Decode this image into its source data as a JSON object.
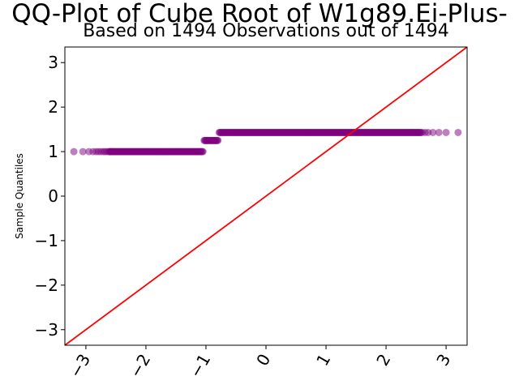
{
  "chart_data": {
    "type": "scatter",
    "title": "QQ-Plot of Cube Root of W1g89.Ei-Plus-",
    "subtitle": "Based on 1494 Observations out of 1494",
    "xlabel": "",
    "ylabel": "Sample Quantiles",
    "xlim": [
      -3.35,
      3.35
    ],
    "ylim": [
      -3.35,
      3.35
    ],
    "x_ticks": [
      -3,
      -2,
      -1,
      0,
      1,
      2,
      3
    ],
    "y_ticks": [
      -3,
      -2,
      -1,
      0,
      1,
      2,
      3
    ],
    "x_tick_labels": [
      "−3",
      "−2",
      "−1",
      "0",
      "1",
      "2",
      "3"
    ],
    "y_tick_labels": [
      "−3",
      "−2",
      "−1",
      "0",
      "1",
      "2",
      "3"
    ],
    "grid": false,
    "reference_line": {
      "slope": 1,
      "intercept": 0,
      "color": "#ff0000"
    },
    "segments": [
      {
        "x": [
          -3.2,
          -3.05,
          -2.95,
          -2.88,
          -2.83,
          -2.79,
          -2.75,
          -2.71,
          -2.68,
          -2.65,
          -2.62,
          -2.6
        ],
        "y": 1.0
      },
      {
        "x_start": -2.6,
        "x_end": -1.05,
        "count": 120,
        "y": 1.0
      },
      {
        "x_start": -1.03,
        "x_end": -0.8,
        "count": 20,
        "y": 1.25
      },
      {
        "x_start": -0.78,
        "x_end": 2.58,
        "count": 260,
        "y": 1.43
      },
      {
        "x": [
          2.6,
          2.65,
          2.7,
          2.78,
          2.88,
          3.0,
          3.2
        ],
        "y": 1.43
      }
    ],
    "marker_color": "#800080"
  }
}
